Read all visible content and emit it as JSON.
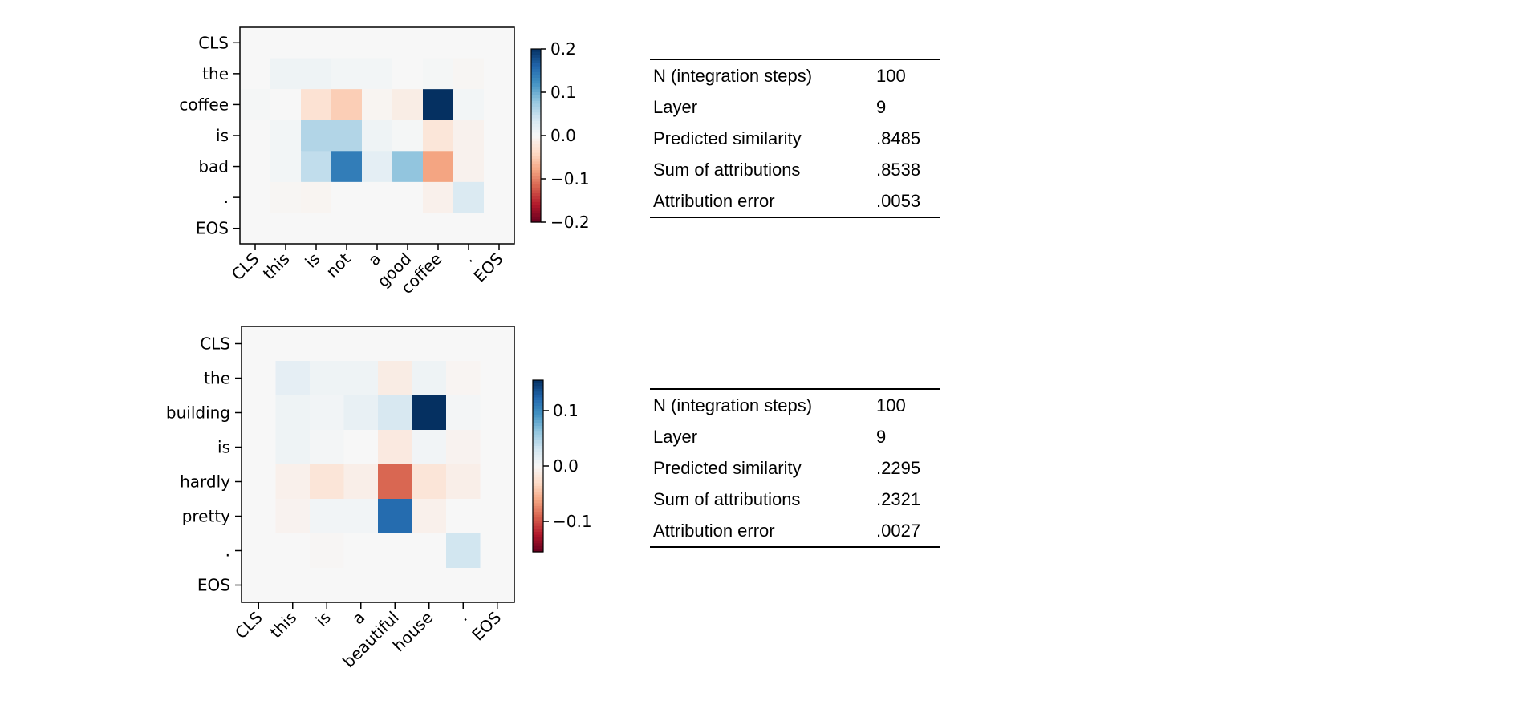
{
  "chart_data": [
    {
      "type": "heatmap",
      "x_labels": [
        "CLS",
        "this",
        "is",
        "not",
        "a",
        "good",
        "coffee",
        ".",
        "EOS"
      ],
      "y_labels": [
        "CLS",
        "the",
        "coffee",
        "is",
        "bad",
        ".",
        "EOS"
      ],
      "colormap": "RdBu (blue positive, red negative)",
      "vlim": [
        -0.2,
        0.2
      ],
      "colorbar_ticks": [
        "0.2",
        "0.1",
        "0.0",
        "−0.1",
        "−0.2"
      ],
      "colorbar_tick_values": [
        0.2,
        0.1,
        0.0,
        -0.1,
        -0.2
      ],
      "values": [
        [
          0,
          0,
          0,
          0,
          0,
          0,
          0,
          0,
          0
        ],
        [
          0,
          0.01,
          0.01,
          0.005,
          0.005,
          0,
          0.003,
          -0.003,
          0
        ],
        [
          0.003,
          0,
          -0.03,
          -0.05,
          -0.005,
          -0.015,
          0.2,
          0.005,
          0
        ],
        [
          0,
          0.005,
          0.06,
          0.06,
          0.01,
          0.003,
          -0.025,
          -0.008,
          0
        ],
        [
          0,
          0.005,
          0.05,
          0.14,
          0.02,
          0.08,
          -0.08,
          -0.008,
          0
        ],
        [
          0,
          -0.003,
          -0.005,
          0,
          0,
          0,
          -0.01,
          0.03,
          0
        ],
        [
          0,
          0,
          0,
          0,
          0,
          0,
          0,
          0,
          0
        ]
      ]
    },
    {
      "type": "heatmap",
      "x_labels": [
        "CLS",
        "this",
        "is",
        "a",
        "beautiful",
        "house",
        ".",
        "EOS"
      ],
      "y_labels": [
        "CLS",
        "the",
        "building",
        "is",
        "hardly",
        "pretty",
        ".",
        "EOS"
      ],
      "colormap": "RdBu (blue positive, red negative)",
      "vlim": [
        -0.155,
        0.155
      ],
      "colorbar_ticks": [
        "0.1",
        "0.0",
        "−0.1"
      ],
      "colorbar_tick_values": [
        0.1,
        0.0,
        -0.1
      ],
      "values": [
        [
          0,
          0,
          0,
          0,
          0,
          0,
          0,
          0
        ],
        [
          0,
          0.015,
          0.007,
          0.007,
          -0.012,
          0.007,
          -0.003,
          0
        ],
        [
          0,
          0.007,
          0.005,
          0.012,
          0.025,
          0.155,
          0.003,
          0
        ],
        [
          0,
          0.007,
          0.003,
          0,
          -0.015,
          0.005,
          -0.005,
          0
        ],
        [
          0,
          -0.008,
          -0.02,
          -0.01,
          -0.09,
          -0.02,
          -0.01,
          0
        ],
        [
          0,
          -0.005,
          0.005,
          0.005,
          0.12,
          -0.008,
          0,
          0
        ],
        [
          0,
          0,
          -0.002,
          0,
          0,
          0,
          0.03,
          0
        ],
        [
          0,
          0,
          0,
          0,
          0,
          0,
          0,
          0
        ]
      ]
    }
  ],
  "tables": [
    {
      "rows": [
        {
          "label": "N (integration steps)",
          "value": "100"
        },
        {
          "label": "Layer",
          "value": "9"
        },
        {
          "label": "Predicted similarity",
          "value": ".8485"
        },
        {
          "label": "Sum of attributions",
          "value": ".8538"
        },
        {
          "label": "Attribution error",
          "value": ".0053"
        }
      ]
    },
    {
      "rows": [
        {
          "label": "N (integration steps)",
          "value": "100"
        },
        {
          "label": "Layer",
          "value": "9"
        },
        {
          "label": "Predicted similarity",
          "value": ".2295"
        },
        {
          "label": "Sum of attributions",
          "value": ".2321"
        },
        {
          "label": "Attribution error",
          "value": ".0027"
        }
      ]
    }
  ]
}
